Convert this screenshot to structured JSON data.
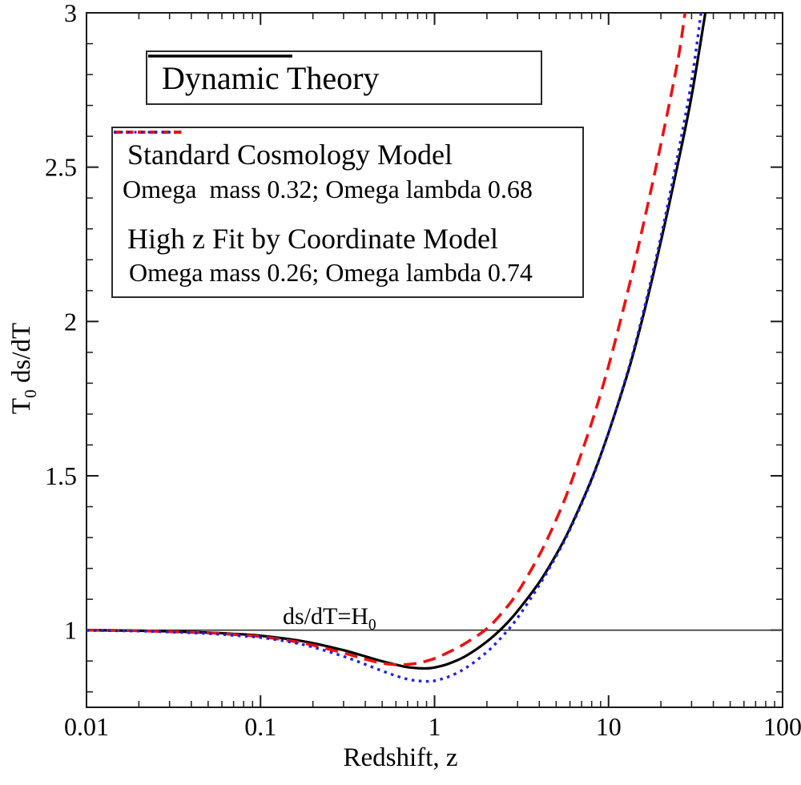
{
  "figure": {
    "background": "#ffffff",
    "y_title_prefix": "T",
    "y_title_sub": "0",
    "y_title_suffix": " ds/dT",
    "refline_label_prefix": "ds/dT=H",
    "refline_label_sub": "0"
  },
  "legend_dynamic": {
    "label": "Dynamic Theory"
  },
  "legend_models": {
    "standard": {
      "name": "Standard Cosmology Model",
      "detail": "Omega  mass 0.32; Omega lambda 0.68"
    },
    "highz": {
      "name": "High z Fit by Coordinate Model",
      "detail": "Omega mass 0.26; Omega lambda 0.74"
    }
  },
  "chart_data": {
    "type": "line",
    "title": "",
    "xlabel": "Redshift, z",
    "ylabel": "T0 ds/dT",
    "x_scale": "log",
    "xlim": [
      0.01,
      100
    ],
    "ylim": [
      0.75,
      3
    ],
    "grid": false,
    "x_major_ticks": [
      0.01,
      0.1,
      1,
      10,
      100
    ],
    "x_tick_labels": [
      "0.01",
      "0.1",
      "1",
      "10",
      "100"
    ],
    "y_major_ticks": [
      1,
      1.5,
      2,
      2.5,
      3
    ],
    "y_tick_labels": [
      "1",
      "1.5",
      "2",
      "2.5",
      "3"
    ],
    "y_minor_step": 0.1,
    "refline": {
      "y": 1.0,
      "label": "ds/dT=H0",
      "color": "#333333"
    },
    "axis_color": "#1a1a1a",
    "series": [
      {
        "name": "Dynamic Theory",
        "color": "#000000",
        "dash": "none",
        "legend_dash": "none",
        "width": 3.2,
        "points": [
          [
            0.01,
            1.0
          ],
          [
            0.015,
            0.999
          ],
          [
            0.02,
            0.998
          ],
          [
            0.03,
            0.996
          ],
          [
            0.05,
            0.992
          ],
          [
            0.07,
            0.988
          ],
          [
            0.1,
            0.982
          ],
          [
            0.15,
            0.97
          ],
          [
            0.2,
            0.958
          ],
          [
            0.3,
            0.935
          ],
          [
            0.4,
            0.915
          ],
          [
            0.5,
            0.899
          ],
          [
            0.6,
            0.888
          ],
          [
            0.7,
            0.88
          ],
          [
            0.8,
            0.877
          ],
          [
            0.9,
            0.876
          ],
          [
            1.0,
            0.879
          ],
          [
            1.2,
            0.891
          ],
          [
            1.5,
            0.915
          ],
          [
            2.0,
            0.963
          ],
          [
            2.5,
            1.012
          ],
          [
            3.0,
            1.062
          ],
          [
            4.0,
            1.155
          ],
          [
            5.0,
            1.245
          ],
          [
            6.0,
            1.33
          ],
          [
            8.0,
            1.49
          ],
          [
            10,
            1.64
          ],
          [
            13,
            1.84
          ],
          [
            16,
            2.03
          ],
          [
            20,
            2.26
          ],
          [
            25,
            2.51
          ],
          [
            30,
            2.73
          ],
          [
            36,
            3.0
          ]
        ]
      },
      {
        "name": "Standard Cosmology Model",
        "omega_mass": 0.32,
        "omega_lambda": 0.68,
        "color": "#ee1111",
        "dash": "16 9",
        "legend_dash": "9.5 5.5",
        "width": 3.6,
        "points": [
          [
            0.01,
            1.0
          ],
          [
            0.015,
            0.999
          ],
          [
            0.02,
            0.998
          ],
          [
            0.03,
            0.995
          ],
          [
            0.05,
            0.991
          ],
          [
            0.07,
            0.986
          ],
          [
            0.1,
            0.979
          ],
          [
            0.15,
            0.965
          ],
          [
            0.2,
            0.951
          ],
          [
            0.3,
            0.926
          ],
          [
            0.4,
            0.906
          ],
          [
            0.5,
            0.893
          ],
          [
            0.6,
            0.888
          ],
          [
            0.7,
            0.889
          ],
          [
            0.8,
            0.893
          ],
          [
            0.9,
            0.9
          ],
          [
            1.0,
            0.908
          ],
          [
            1.2,
            0.928
          ],
          [
            1.5,
            0.957
          ],
          [
            2.0,
            1.005
          ],
          [
            2.5,
            1.063
          ],
          [
            3.0,
            1.122
          ],
          [
            4.0,
            1.243
          ],
          [
            5.0,
            1.358
          ],
          [
            6.0,
            1.468
          ],
          [
            8.0,
            1.672
          ],
          [
            10,
            1.856
          ],
          [
            13,
            2.105
          ],
          [
            16,
            2.325
          ],
          [
            20,
            2.575
          ],
          [
            25,
            2.845
          ],
          [
            27.5,
            3.0
          ]
        ]
      },
      {
        "name": "High z Fit by Coordinate Model",
        "omega_mass": 0.26,
        "omega_lambda": 0.74,
        "color": "#2222dd",
        "dash": "3.5 5.5",
        "legend_dash": "3 5.5",
        "width": 3.4,
        "points": [
          [
            0.01,
            0.999
          ],
          [
            0.015,
            0.998
          ],
          [
            0.02,
            0.997
          ],
          [
            0.03,
            0.994
          ],
          [
            0.05,
            0.989
          ],
          [
            0.07,
            0.983
          ],
          [
            0.1,
            0.976
          ],
          [
            0.15,
            0.961
          ],
          [
            0.2,
            0.945
          ],
          [
            0.3,
            0.915
          ],
          [
            0.4,
            0.889
          ],
          [
            0.5,
            0.868
          ],
          [
            0.6,
            0.852
          ],
          [
            0.7,
            0.841
          ],
          [
            0.8,
            0.836
          ],
          [
            0.9,
            0.834
          ],
          [
            1.0,
            0.836
          ],
          [
            1.2,
            0.849
          ],
          [
            1.5,
            0.876
          ],
          [
            2.0,
            0.929
          ],
          [
            2.5,
            0.985
          ],
          [
            3.0,
            1.04
          ],
          [
            4.0,
            1.146
          ],
          [
            5.0,
            1.24
          ],
          [
            6.0,
            1.326
          ],
          [
            8.0,
            1.487
          ],
          [
            10,
            1.64
          ],
          [
            13,
            1.845
          ],
          [
            16,
            2.04
          ],
          [
            20,
            2.275
          ],
          [
            25,
            2.54
          ],
          [
            30,
            2.78
          ],
          [
            34,
            3.0
          ]
        ]
      }
    ]
  }
}
